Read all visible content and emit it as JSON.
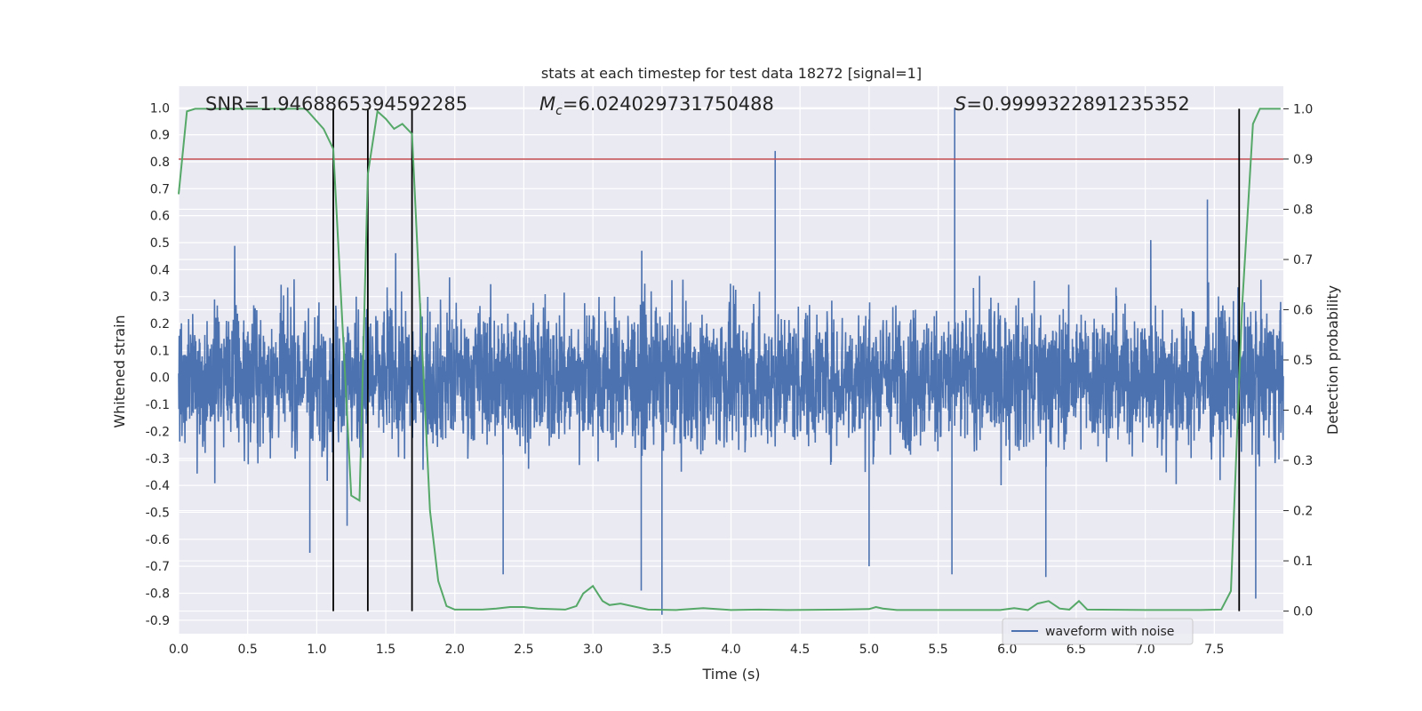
{
  "chart_data": {
    "type": "line",
    "title": "stats at each timestep for test data 18272 [signal=1]",
    "xlabel": "Time (s)",
    "ylabel": "Whitened strain",
    "y2label": "Detection probability",
    "xlim": [
      0,
      8
    ],
    "ylim": [
      -0.95,
      1.08
    ],
    "y2lim": [
      -0.045,
      1.045
    ],
    "xticks": [
      "0.0",
      "0.5",
      "1.0",
      "1.5",
      "2.0",
      "2.5",
      "3.0",
      "3.5",
      "4.0",
      "4.5",
      "5.0",
      "5.5",
      "6.0",
      "6.5",
      "7.0",
      "7.5"
    ],
    "yticks": [
      "-0.9",
      "-0.8",
      "-0.7",
      "-0.6",
      "-0.5",
      "-0.4",
      "-0.3",
      "-0.2",
      "-0.1",
      "0.0",
      "0.1",
      "0.2",
      "0.3",
      "0.4",
      "0.5",
      "0.6",
      "0.7",
      "0.8",
      "0.9",
      "1.0"
    ],
    "y2ticks": [
      "0.0",
      "0.1",
      "0.2",
      "0.3",
      "0.4",
      "0.5",
      "0.6",
      "0.7",
      "0.8",
      "0.9",
      "1.0"
    ],
    "annotations": {
      "snr": {
        "label": "SNR",
        "value": "1.9468865394592285"
      },
      "mc": {
        "label": "M",
        "subscript": "c",
        "value": "6.024029731750488"
      },
      "s": {
        "label": "S",
        "value": "0.9999322891235352"
      }
    },
    "threshold": {
      "y2": 0.9,
      "color": "#c44e52"
    },
    "detection_markers_x": [
      1.12,
      1.37,
      1.69,
      7.68
    ],
    "waveform": {
      "name": "waveform with noise",
      "color": "#4c72b0",
      "typical_amplitude": 0.3,
      "peaks": [
        {
          "x": 4.32,
          "y": 0.84
        },
        {
          "x": 5.62,
          "y": 1.0
        },
        {
          "x": 5.6,
          "y": -0.73
        },
        {
          "x": 3.5,
          "y": -0.88
        },
        {
          "x": 7.8,
          "y": -0.82
        },
        {
          "x": 3.35,
          "y": -0.79
        },
        {
          "x": 6.28,
          "y": -0.74
        },
        {
          "x": 2.35,
          "y": -0.73
        },
        {
          "x": 5.0,
          "y": -0.7
        },
        {
          "x": 0.95,
          "y": -0.65
        },
        {
          "x": 1.22,
          "y": -0.55
        },
        {
          "x": 7.45,
          "y": 0.66
        }
      ]
    },
    "detection_probability": {
      "name": "detection probability",
      "color": "#55a868",
      "x": [
        0.0,
        0.06,
        0.12,
        0.5,
        0.92,
        1.05,
        1.12,
        1.2,
        1.25,
        1.31,
        1.37,
        1.44,
        1.5,
        1.56,
        1.62,
        1.69,
        1.75,
        1.82,
        1.88,
        1.94,
        2.0,
        2.2,
        2.3,
        2.4,
        2.5,
        2.6,
        2.8,
        2.88,
        2.93,
        3.0,
        3.07,
        3.12,
        3.2,
        3.4,
        3.6,
        3.8,
        4.0,
        4.2,
        4.4,
        4.8,
        5.0,
        5.05,
        5.1,
        5.2,
        5.4,
        5.7,
        5.95,
        6.05,
        6.15,
        6.22,
        6.3,
        6.38,
        6.45,
        6.52,
        6.58,
        7.0,
        7.4,
        7.55,
        7.62,
        7.7,
        7.78,
        7.83,
        7.98
      ],
      "y": [
        0.83,
        0.995,
        1.0,
        1.0,
        1.0,
        0.96,
        0.92,
        0.5,
        0.23,
        0.22,
        0.87,
        0.995,
        0.98,
        0.96,
        0.97,
        0.95,
        0.6,
        0.2,
        0.06,
        0.01,
        0.003,
        0.003,
        0.005,
        0.008,
        0.008,
        0.005,
        0.003,
        0.01,
        0.035,
        0.05,
        0.02,
        0.012,
        0.015,
        0.003,
        0.002,
        0.006,
        0.002,
        0.003,
        0.002,
        0.003,
        0.004,
        0.008,
        0.005,
        0.002,
        0.002,
        0.002,
        0.002,
        0.006,
        0.002,
        0.015,
        0.02,
        0.005,
        0.003,
        0.02,
        0.003,
        0.002,
        0.002,
        0.003,
        0.04,
        0.6,
        0.97,
        1.0,
        1.0
      ]
    },
    "legend": {
      "entries": [
        "waveform with noise"
      ],
      "placement": "lower-right"
    }
  }
}
